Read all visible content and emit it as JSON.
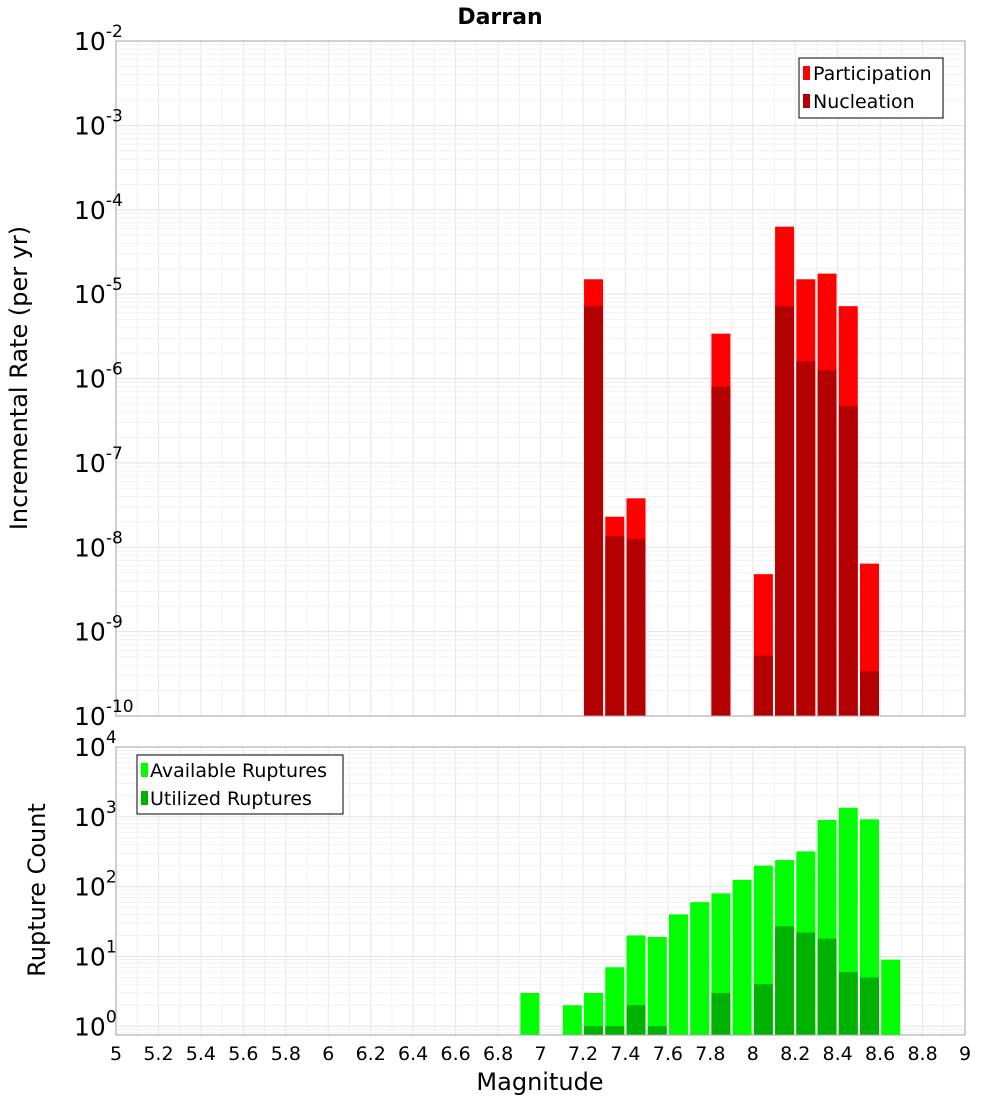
{
  "chart_data": [
    {
      "type": "bar",
      "title": "Darran",
      "ylabel": "Incremental Rate (per yr)",
      "xlabel": "",
      "yscale": "log",
      "ylim": [
        1e-10,
        0.01
      ],
      "xlim": [
        5,
        9
      ],
      "grid": true,
      "legend_position": "top-right",
      "y_tick_labels": [
        {
          "base": "10",
          "exp": "-10",
          "value": 1e-10
        },
        {
          "base": "10",
          "exp": "-9",
          "value": 1e-09
        },
        {
          "base": "10",
          "exp": "-8",
          "value": 1e-08
        },
        {
          "base": "10",
          "exp": "-7",
          "value": 1e-07
        },
        {
          "base": "10",
          "exp": "-6",
          "value": 1e-06
        },
        {
          "base": "10",
          "exp": "-5",
          "value": 1e-05
        },
        {
          "base": "10",
          "exp": "-4",
          "value": 0.0001
        },
        {
          "base": "10",
          "exp": "-3",
          "value": 0.001
        },
        {
          "base": "10",
          "exp": "-2",
          "value": 0.01
        }
      ],
      "series": [
        {
          "name": "Participation",
          "color": "#ff0000",
          "points": [
            {
              "x": 7.25,
              "y": 1.5e-05
            },
            {
              "x": 7.35,
              "y": 2.3e-08
            },
            {
              "x": 7.45,
              "y": 3.8e-08
            },
            {
              "x": 7.85,
              "y": 3.4e-06
            },
            {
              "x": 8.05,
              "y": 4.8e-09
            },
            {
              "x": 8.15,
              "y": 6.3e-05
            },
            {
              "x": 8.25,
              "y": 1.5e-05
            },
            {
              "x": 8.35,
              "y": 1.75e-05
            },
            {
              "x": 8.45,
              "y": 7.2e-06
            },
            {
              "x": 8.55,
              "y": 6.4e-09
            }
          ]
        },
        {
          "name": "Nucleation",
          "color": "#b30000",
          "points": [
            {
              "x": 7.25,
              "y": 7.2e-06
            },
            {
              "x": 7.35,
              "y": 1.35e-08
            },
            {
              "x": 7.45,
              "y": 1.25e-08
            },
            {
              "x": 7.85,
              "y": 8e-07
            },
            {
              "x": 8.05,
              "y": 5.2e-10
            },
            {
              "x": 8.15,
              "y": 7.2e-06
            },
            {
              "x": 8.25,
              "y": 1.6e-06
            },
            {
              "x": 8.35,
              "y": 1.25e-06
            },
            {
              "x": 8.45,
              "y": 4.7e-07
            },
            {
              "x": 8.55,
              "y": 3.4e-10
            }
          ]
        }
      ]
    },
    {
      "type": "bar",
      "title": "",
      "ylabel": "Rupture Count",
      "xlabel": "Magnitude",
      "yscale": "log",
      "ylim": [
        0.75,
        10000
      ],
      "xlim": [
        5,
        9
      ],
      "grid": true,
      "legend_position": "top-left",
      "x_tick_labels": [
        "5",
        "5.2",
        "5.4",
        "5.6",
        "5.8",
        "6",
        "6.2",
        "6.4",
        "6.6",
        "6.8",
        "7",
        "7.2",
        "7.4",
        "7.6",
        "7.8",
        "8",
        "8.2",
        "8.4",
        "8.6",
        "8.8",
        "9"
      ],
      "y_tick_labels": [
        {
          "base": "10",
          "exp": "0",
          "value": 1
        },
        {
          "base": "10",
          "exp": "1",
          "value": 10
        },
        {
          "base": "10",
          "exp": "2",
          "value": 100
        },
        {
          "base": "10",
          "exp": "3",
          "value": 1000
        },
        {
          "base": "10",
          "exp": "4",
          "value": 10000
        }
      ],
      "series": [
        {
          "name": "Available Ruptures",
          "color": "#00ff00",
          "points": [
            {
              "x": 6.95,
              "y": 3
            },
            {
              "x": 7.15,
              "y": 2
            },
            {
              "x": 7.25,
              "y": 3
            },
            {
              "x": 7.35,
              "y": 7
            },
            {
              "x": 7.45,
              "y": 20
            },
            {
              "x": 7.55,
              "y": 19
            },
            {
              "x": 7.65,
              "y": 40
            },
            {
              "x": 7.75,
              "y": 60
            },
            {
              "x": 7.85,
              "y": 80
            },
            {
              "x": 7.95,
              "y": 125
            },
            {
              "x": 8.05,
              "y": 200
            },
            {
              "x": 8.15,
              "y": 240
            },
            {
              "x": 8.25,
              "y": 320
            },
            {
              "x": 8.35,
              "y": 900
            },
            {
              "x": 8.45,
              "y": 1350
            },
            {
              "x": 8.55,
              "y": 920
            },
            {
              "x": 8.65,
              "y": 9
            }
          ]
        },
        {
          "name": "Utilized Ruptures",
          "color": "#00b200",
          "points": [
            {
              "x": 7.25,
              "y": 1
            },
            {
              "x": 7.35,
              "y": 1
            },
            {
              "x": 7.45,
              "y": 2
            },
            {
              "x": 7.55,
              "y": 1
            },
            {
              "x": 7.85,
              "y": 3
            },
            {
              "x": 8.05,
              "y": 4
            },
            {
              "x": 8.15,
              "y": 27
            },
            {
              "x": 8.25,
              "y": 22
            },
            {
              "x": 8.35,
              "y": 18
            },
            {
              "x": 8.45,
              "y": 6
            },
            {
              "x": 8.55,
              "y": 5
            }
          ]
        }
      ]
    }
  ]
}
